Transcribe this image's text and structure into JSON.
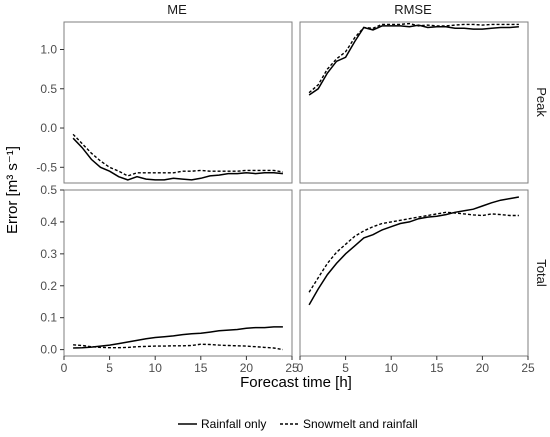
{
  "figure": {
    "ylabel": "Error [m³ s⁻¹]",
    "xlabel": "Forecast time [h]",
    "col_labels": [
      "ME",
      "RMSE"
    ],
    "row_labels": [
      "Peak",
      "Total"
    ],
    "legend": [
      "Rainfall only",
      "Snowmelt and rainfall"
    ],
    "x_ticks": [
      "0",
      "5",
      "10",
      "15",
      "20",
      "25"
    ],
    "peak_y_ticks": [
      "-0.5",
      "0.0",
      "0.5",
      "1.0"
    ],
    "total_y_ticks": [
      "0.0",
      "0.1",
      "0.2",
      "0.3",
      "0.4",
      "0.5"
    ]
  },
  "chart_data": [
    {
      "type": "line",
      "panel": "Peak / ME",
      "x": [
        1,
        2,
        3,
        4,
        5,
        6,
        7,
        8,
        9,
        10,
        11,
        12,
        13,
        14,
        15,
        16,
        17,
        18,
        19,
        20,
        21,
        22,
        23,
        24
      ],
      "xlim": [
        0,
        25
      ],
      "ylim": [
        -0.7,
        1.35
      ],
      "series": [
        {
          "name": "Rainfall only",
          "style": "solid",
          "values": [
            -0.13,
            -0.25,
            -0.4,
            -0.5,
            -0.55,
            -0.62,
            -0.66,
            -0.62,
            -0.65,
            -0.66,
            -0.66,
            -0.64,
            -0.65,
            -0.66,
            -0.64,
            -0.61,
            -0.6,
            -0.58,
            -0.58,
            -0.57,
            -0.58,
            -0.57,
            -0.57,
            -0.58
          ]
        },
        {
          "name": "Snowmelt and rainfall",
          "style": "dashed",
          "values": [
            -0.08,
            -0.2,
            -0.32,
            -0.42,
            -0.5,
            -0.55,
            -0.61,
            -0.57,
            -0.57,
            -0.57,
            -0.57,
            -0.57,
            -0.55,
            -0.55,
            -0.54,
            -0.55,
            -0.55,
            -0.55,
            -0.55,
            -0.54,
            -0.54,
            -0.54,
            -0.54,
            -0.56
          ]
        }
      ]
    },
    {
      "type": "line",
      "panel": "Peak / RMSE",
      "x": [
        1,
        2,
        3,
        4,
        5,
        6,
        7,
        8,
        9,
        10,
        11,
        12,
        13,
        14,
        15,
        16,
        17,
        18,
        19,
        20,
        21,
        22,
        23,
        24
      ],
      "xlim": [
        0,
        25
      ],
      "ylim": [
        -0.7,
        1.35
      ],
      "series": [
        {
          "name": "Rainfall only",
          "style": "solid",
          "values": [
            0.42,
            0.5,
            0.7,
            0.85,
            0.9,
            1.1,
            1.28,
            1.25,
            1.3,
            1.3,
            1.3,
            1.29,
            1.31,
            1.28,
            1.29,
            1.29,
            1.27,
            1.27,
            1.26,
            1.26,
            1.27,
            1.28,
            1.28,
            1.29
          ]
        },
        {
          "name": "Snowmelt and rainfall",
          "style": "dashed",
          "values": [
            0.45,
            0.55,
            0.75,
            0.88,
            0.97,
            1.15,
            1.28,
            1.27,
            1.32,
            1.32,
            1.32,
            1.33,
            1.3,
            1.31,
            1.3,
            1.3,
            1.31,
            1.32,
            1.32,
            1.31,
            1.32,
            1.32,
            1.32,
            1.32
          ]
        }
      ]
    },
    {
      "type": "line",
      "panel": "Total / ME",
      "x": [
        1,
        2,
        3,
        4,
        5,
        6,
        7,
        8,
        9,
        10,
        11,
        12,
        13,
        14,
        15,
        16,
        17,
        18,
        19,
        20,
        21,
        22,
        23,
        24
      ],
      "xlim": [
        0,
        25
      ],
      "ylim": [
        -0.02,
        0.5
      ],
      "series": [
        {
          "name": "Rainfall only",
          "style": "solid",
          "values": [
            0.005,
            0.006,
            0.008,
            0.011,
            0.014,
            0.019,
            0.024,
            0.029,
            0.034,
            0.038,
            0.04,
            0.043,
            0.047,
            0.05,
            0.051,
            0.055,
            0.059,
            0.061,
            0.063,
            0.067,
            0.069,
            0.069,
            0.071,
            0.071
          ]
        },
        {
          "name": "Snowmelt and rainfall",
          "style": "dashed",
          "values": [
            0.015,
            0.013,
            0.009,
            0.007,
            0.006,
            0.006,
            0.007,
            0.009,
            0.01,
            0.011,
            0.011,
            0.012,
            0.012,
            0.013,
            0.017,
            0.016,
            0.014,
            0.013,
            0.012,
            0.011,
            0.009,
            0.007,
            0.005,
            0.0
          ]
        }
      ]
    },
    {
      "type": "line",
      "panel": "Total / RMSE",
      "x": [
        1,
        2,
        3,
        4,
        5,
        6,
        7,
        8,
        9,
        10,
        11,
        12,
        13,
        14,
        15,
        16,
        17,
        18,
        19,
        20,
        21,
        22,
        23,
        24
      ],
      "xlim": [
        0,
        25
      ],
      "ylim": [
        -0.02,
        0.5
      ],
      "series": [
        {
          "name": "Rainfall only",
          "style": "solid",
          "values": [
            0.14,
            0.19,
            0.235,
            0.27,
            0.3,
            0.325,
            0.35,
            0.36,
            0.375,
            0.385,
            0.395,
            0.4,
            0.41,
            0.415,
            0.418,
            0.423,
            0.43,
            0.435,
            0.44,
            0.45,
            0.46,
            0.468,
            0.473,
            0.478
          ]
        },
        {
          "name": "Snowmelt and rainfall",
          "style": "dashed",
          "values": [
            0.18,
            0.225,
            0.27,
            0.305,
            0.33,
            0.355,
            0.372,
            0.385,
            0.395,
            0.4,
            0.405,
            0.41,
            0.415,
            0.42,
            0.425,
            0.43,
            0.428,
            0.425,
            0.422,
            0.42,
            0.425,
            0.423,
            0.42,
            0.42
          ]
        }
      ]
    }
  ]
}
